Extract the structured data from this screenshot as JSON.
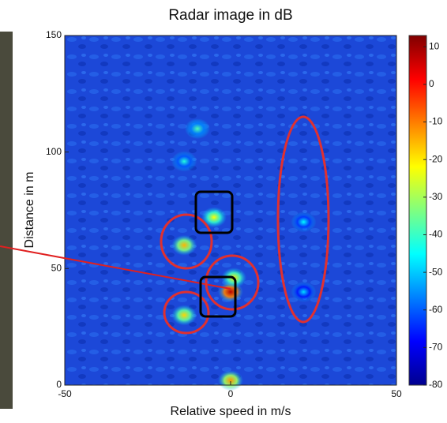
{
  "chart_data": {
    "type": "heatmap",
    "title": "Radar image in dB",
    "x_label": "Relative speed in m/s",
    "y_label": "Distance in m",
    "xlim": [
      -50,
      50
    ],
    "xticks": [
      -50,
      0,
      50
    ],
    "ylim": [
      0,
      150
    ],
    "yticks": [
      0,
      50,
      100,
      150
    ],
    "clim": [
      -80,
      13
    ],
    "cticks": [
      10,
      0,
      -10,
      -20,
      -30,
      -40,
      -50,
      -60,
      -70,
      -80
    ],
    "colormap": "jet",
    "points": {
      "x": [
        0,
        -14,
        -14,
        -5,
        0,
        -10,
        -14,
        1,
        22,
        22
      ],
      "y": [
        40,
        60,
        30,
        72,
        2,
        110,
        96,
        46,
        70,
        40
      ],
      "values": [
        8,
        -15,
        -18,
        -22,
        -12,
        -38,
        -42,
        -20,
        -45,
        -48
      ]
    }
  }
}
